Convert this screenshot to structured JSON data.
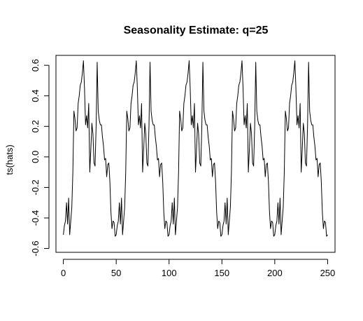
{
  "chart_data": {
    "type": "line",
    "title": "Seasonality Estimate: q=25",
    "xlabel": "",
    "ylabel": "ts(hats)",
    "xlim": [
      -7,
      257
    ],
    "ylim": [
      -0.625,
      0.665
    ],
    "x_ticks": [
      0,
      50,
      100,
      150,
      200,
      250
    ],
    "x_tick_labels": [
      "0",
      "50",
      "100",
      "150",
      "200",
      "250"
    ],
    "y_ticks": [
      -0.6,
      -0.4,
      -0.2,
      0.0,
      0.2,
      0.4,
      0.6
    ],
    "y_tick_labels": [
      "-0.6",
      "-0.4",
      "-0.2",
      "0.0",
      "0.2",
      "0.4",
      "0.6"
    ],
    "grid": false,
    "legend": "none",
    "line_color": "#000000",
    "period": 50,
    "x_start": 0,
    "series": [
      {
        "values": [
          -0.51,
          -0.45,
          -0.42,
          -0.3,
          -0.44,
          -0.27,
          -0.51,
          -0.42,
          -0.33,
          -0.1,
          0.3,
          0.25,
          0.17,
          0.19,
          0.35,
          0.4,
          0.47,
          0.49,
          0.55,
          0.63,
          0.45,
          0.21,
          0.27,
          0.19,
          0.35,
          -0.1,
          0.05,
          0.22,
          0.15,
          -0.04,
          -0.06,
          0.2,
          0.62,
          0.3,
          0.24,
          0.21,
          0.21,
          0.13,
          0.07,
          -0.02,
          -0.01,
          -0.13,
          -0.05,
          -0.04,
          -0.16,
          -0.36,
          -0.47,
          -0.42,
          -0.43,
          -0.52
        ]
      }
    ]
  }
}
